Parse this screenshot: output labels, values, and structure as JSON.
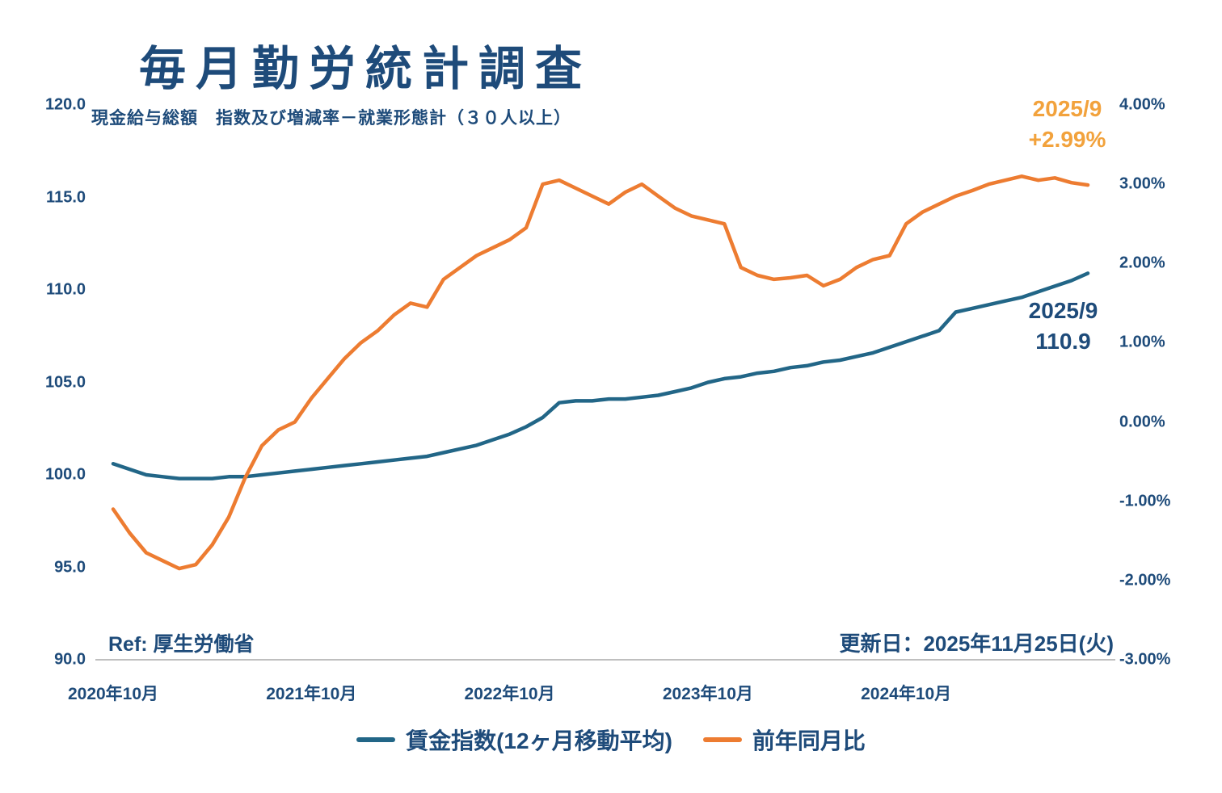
{
  "header": {
    "title": "毎月勤労統計調査",
    "subtitle": "現金給与総額　指数及び増減率－就業形態計（３０人以上）"
  },
  "footer": {
    "ref": "Ref: 厚生労働省",
    "updated": "更新日：2025年11月25日(火)"
  },
  "annotations": {
    "yoy": {
      "line1": "2025/9",
      "line2": "+2.99%"
    },
    "index": {
      "line1": "2025/9",
      "line2": "110.9"
    }
  },
  "colors": {
    "text_navy": "#1E4B7A",
    "index_line": "#226687",
    "yoy_line": "#ED7C31",
    "yoy_annotation": "#F2A23C",
    "axis_line": "#BFBFBF"
  },
  "chart_data": {
    "type": "line",
    "title": "毎月勤労統計調査",
    "subtitle": "現金給与総額　指数及び増減率－就業形態計（３０人以上）",
    "grid": false,
    "legend_position": "bottom",
    "latest": {
      "date": "2025/9",
      "index": 110.9,
      "yoy_percent": 2.99
    },
    "x": [
      "2020-10",
      "2020-11",
      "2020-12",
      "2021-01",
      "2021-02",
      "2021-03",
      "2021-04",
      "2021-05",
      "2021-06",
      "2021-07",
      "2021-08",
      "2021-09",
      "2021-10",
      "2021-11",
      "2021-12",
      "2022-01",
      "2022-02",
      "2022-03",
      "2022-04",
      "2022-05",
      "2022-06",
      "2022-07",
      "2022-08",
      "2022-09",
      "2022-10",
      "2022-11",
      "2022-12",
      "2023-01",
      "2023-02",
      "2023-03",
      "2023-04",
      "2023-05",
      "2023-06",
      "2023-07",
      "2023-08",
      "2023-09",
      "2023-10",
      "2023-11",
      "2023-12",
      "2024-01",
      "2024-02",
      "2024-03",
      "2024-04",
      "2024-05",
      "2024-06",
      "2024-07",
      "2024-08",
      "2024-09",
      "2024-10",
      "2024-11",
      "2024-12",
      "2025-01",
      "2025-02",
      "2025-03",
      "2025-04",
      "2025-05",
      "2025-06",
      "2025-07",
      "2025-08",
      "2025-09"
    ],
    "series": [
      {
        "name": "賃金指数(12ヶ月移動平均)",
        "axis": "left",
        "color": "#226687",
        "values": [
          100.6,
          100.3,
          100.0,
          99.9,
          99.8,
          99.8,
          99.8,
          99.9,
          99.9,
          100.0,
          100.1,
          100.2,
          100.3,
          100.4,
          100.5,
          100.6,
          100.7,
          100.8,
          100.9,
          101.0,
          101.2,
          101.4,
          101.6,
          101.9,
          102.2,
          102.6,
          103.1,
          103.9,
          104.0,
          104.0,
          104.1,
          104.1,
          104.2,
          104.3,
          104.5,
          104.7,
          105.0,
          105.2,
          105.3,
          105.5,
          105.6,
          105.8,
          105.9,
          106.1,
          106.2,
          106.4,
          106.6,
          106.9,
          107.2,
          107.5,
          107.8,
          108.8,
          109.0,
          109.2,
          109.4,
          109.6,
          109.9,
          110.2,
          110.5,
          110.9
        ]
      },
      {
        "name": "前年同月比",
        "axis": "right",
        "color": "#ED7C31",
        "values": [
          -1.1,
          -1.4,
          -1.65,
          -1.75,
          -1.85,
          -1.8,
          -1.55,
          -1.2,
          -0.7,
          -0.3,
          -0.1,
          0.0,
          0.3,
          0.55,
          0.8,
          1.0,
          1.15,
          1.35,
          1.5,
          1.45,
          1.8,
          1.95,
          2.1,
          2.2,
          2.3,
          2.45,
          3.0,
          3.05,
          2.95,
          2.85,
          2.75,
          2.9,
          3.0,
          2.85,
          2.7,
          2.6,
          2.55,
          2.5,
          1.95,
          1.85,
          1.8,
          1.82,
          1.85,
          1.72,
          1.8,
          1.95,
          2.05,
          2.1,
          2.5,
          2.65,
          2.75,
          2.85,
          2.92,
          3.0,
          3.05,
          3.1,
          3.05,
          3.08,
          3.02,
          2.99
        ]
      }
    ],
    "left_axis": {
      "min": 90,
      "max": 120,
      "ticks": [
        {
          "value": 120,
          "label": "120.0"
        },
        {
          "value": 115,
          "label": "115.0"
        },
        {
          "value": 110,
          "label": "110.0"
        },
        {
          "value": 105,
          "label": "105.0"
        },
        {
          "value": 100,
          "label": "100.0"
        },
        {
          "value": 95,
          "label": "95.0"
        },
        {
          "value": 90,
          "label": "90.0"
        }
      ]
    },
    "right_axis": {
      "min": -3,
      "max": 4,
      "ticks": [
        {
          "value": 4,
          "label": "4.00%"
        },
        {
          "value": 3,
          "label": "3.00%"
        },
        {
          "value": 2,
          "label": "2.00%"
        },
        {
          "value": 1,
          "label": "1.00%"
        },
        {
          "value": 0,
          "label": "0.00%"
        },
        {
          "value": -1,
          "label": "-1.00%"
        },
        {
          "value": -2,
          "label": "-2.00%"
        },
        {
          "value": -3,
          "label": "-3.00%"
        }
      ]
    },
    "x_axis": {
      "ticks": [
        {
          "index": 0,
          "label": "2020年10月"
        },
        {
          "index": 12,
          "label": "2021年10月"
        },
        {
          "index": 24,
          "label": "2022年10月"
        },
        {
          "index": 36,
          "label": "2023年10月"
        },
        {
          "index": 48,
          "label": "2024年10月"
        }
      ]
    }
  }
}
